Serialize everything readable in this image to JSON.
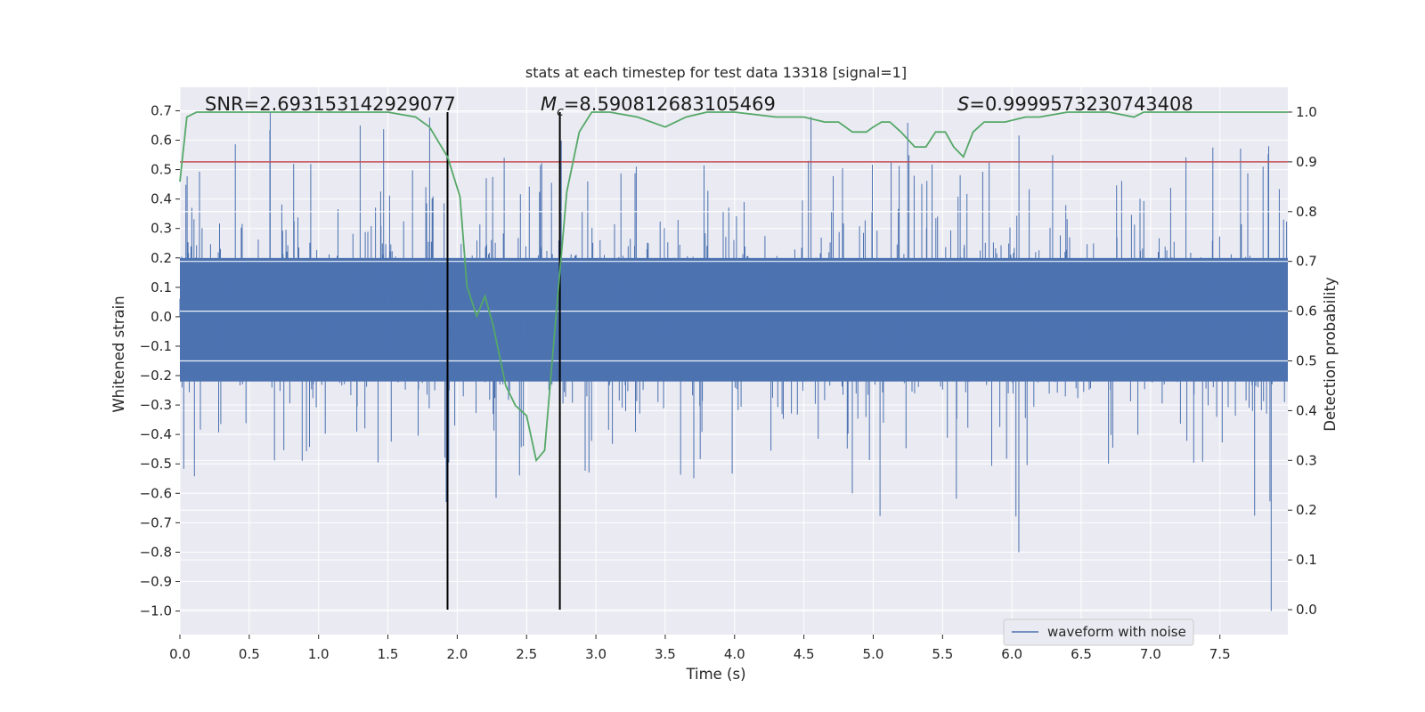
{
  "chart_data": {
    "type": "line",
    "title": "stats at each timestep for test data 13318 [signal=1]",
    "xlabel": "Time (s)",
    "ylabel": "Whitened strain",
    "y2label": "Detection probability",
    "xlim": [
      0,
      7.99
    ],
    "ylim": [
      -1.08,
      0.78
    ],
    "y2lim": [
      -0.05,
      1.05
    ],
    "xticks": [
      "0.0",
      "0.5",
      "1.0",
      "1.5",
      "2.0",
      "2.5",
      "3.0",
      "3.5",
      "4.0",
      "4.5",
      "5.0",
      "5.5",
      "6.0",
      "6.5",
      "7.0",
      "7.5"
    ],
    "xtick_values": [
      0,
      0.5,
      1,
      1.5,
      2,
      2.5,
      3,
      3.5,
      4,
      4.5,
      5,
      5.5,
      6,
      6.5,
      7,
      7.5
    ],
    "yticks": [
      "0.7",
      "0.6",
      "0.5",
      "0.4",
      "0.3",
      "0.2",
      "0.1",
      "0.0",
      "−0.1",
      "−0.2",
      "−0.3",
      "−0.4",
      "−0.5",
      "−0.6",
      "−0.7",
      "−0.8",
      "−0.9",
      "−1.0"
    ],
    "ytick_values": [
      0.7,
      0.6,
      0.5,
      0.4,
      0.3,
      0.2,
      0.1,
      0.0,
      -0.1,
      -0.2,
      -0.3,
      -0.4,
      -0.5,
      -0.6,
      -0.7,
      -0.8,
      -0.9,
      -1.0
    ],
    "y2ticks": [
      "1.0",
      "0.9",
      "0.8",
      "0.7",
      "0.6",
      "0.5",
      "0.4",
      "0.3",
      "0.2",
      "0.1",
      "0.0"
    ],
    "y2tick_values": [
      1.0,
      0.9,
      0.8,
      0.7,
      0.6,
      0.5,
      0.4,
      0.3,
      0.2,
      0.1,
      0.0
    ],
    "annotations": {
      "snr": "SNR=2.693153142929077",
      "mc": "=8.590812683105469",
      "mc_symbol": "M",
      "mc_subscript": "c",
      "s": "=0.9999573230743408",
      "s_symbol": "S"
    },
    "legend": {
      "label": "waveform with noise",
      "placement": "lower-right"
    },
    "threshold": 0.9,
    "markers": [
      1.93,
      2.74
    ],
    "waveform_envelope": {
      "band_upper": 0.2,
      "band_lower": -0.22,
      "peak_max": 0.7,
      "trough_min": -1.0,
      "spike_up_times": [
        0.4,
        0.65,
        1.3,
        1.47,
        1.8,
        2.75,
        4.55,
        5.25,
        6.05,
        7.45,
        7.65,
        7.75,
        7.85
      ],
      "spike_down_times": [
        1.92,
        2.28,
        4.85,
        5.05,
        5.6,
        6.03,
        7.75,
        7.86
      ]
    },
    "series": [
      {
        "name": "detection probability",
        "axis": "right",
        "color": "#55a868",
        "x": [
          0.0,
          0.05,
          0.12,
          0.2,
          0.5,
          1.0,
          1.5,
          1.7,
          1.8,
          1.93,
          2.02,
          2.07,
          2.14,
          2.2,
          2.26,
          2.35,
          2.42,
          2.5,
          2.57,
          2.63,
          2.7,
          2.79,
          2.88,
          2.97,
          3.1,
          3.3,
          3.5,
          3.65,
          3.8,
          4.0,
          4.3,
          4.5,
          4.65,
          4.75,
          4.85,
          4.95,
          5.0,
          5.06,
          5.12,
          5.2,
          5.3,
          5.38,
          5.45,
          5.52,
          5.58,
          5.65,
          5.72,
          5.8,
          5.95,
          6.1,
          6.2,
          6.4,
          6.5,
          6.7,
          6.88,
          6.95,
          7.0,
          7.2,
          7.5,
          7.6,
          7.99
        ],
        "values": [
          0.86,
          0.99,
          1.0,
          1.0,
          1.0,
          1.0,
          1.0,
          0.99,
          0.97,
          0.91,
          0.83,
          0.65,
          0.59,
          0.63,
          0.57,
          0.45,
          0.41,
          0.39,
          0.3,
          0.32,
          0.55,
          0.84,
          0.96,
          1.0,
          1.0,
          0.99,
          0.97,
          0.99,
          1.0,
          1.0,
          0.99,
          0.99,
          0.98,
          0.98,
          0.96,
          0.96,
          0.97,
          0.98,
          0.98,
          0.96,
          0.93,
          0.93,
          0.96,
          0.96,
          0.93,
          0.91,
          0.96,
          0.98,
          0.98,
          0.99,
          0.99,
          1.0,
          1.0,
          1.0,
          0.99,
          1.0,
          1.0,
          1.0,
          1.0,
          1.0,
          1.0
        ]
      },
      {
        "name": "waveform with noise",
        "axis": "left",
        "color": "#4c72b0"
      },
      {
        "name": "threshold",
        "axis": "right",
        "color": "#c44e52"
      },
      {
        "name": "event markers",
        "axis": "right",
        "color": "#000000"
      }
    ],
    "grid": true,
    "colors": {
      "background": "#eaeaf2",
      "grid": "#ffffff",
      "waveform": "#4c72b0",
      "probability": "#55a868",
      "threshold": "#c44e52",
      "marker": "#000000"
    }
  }
}
